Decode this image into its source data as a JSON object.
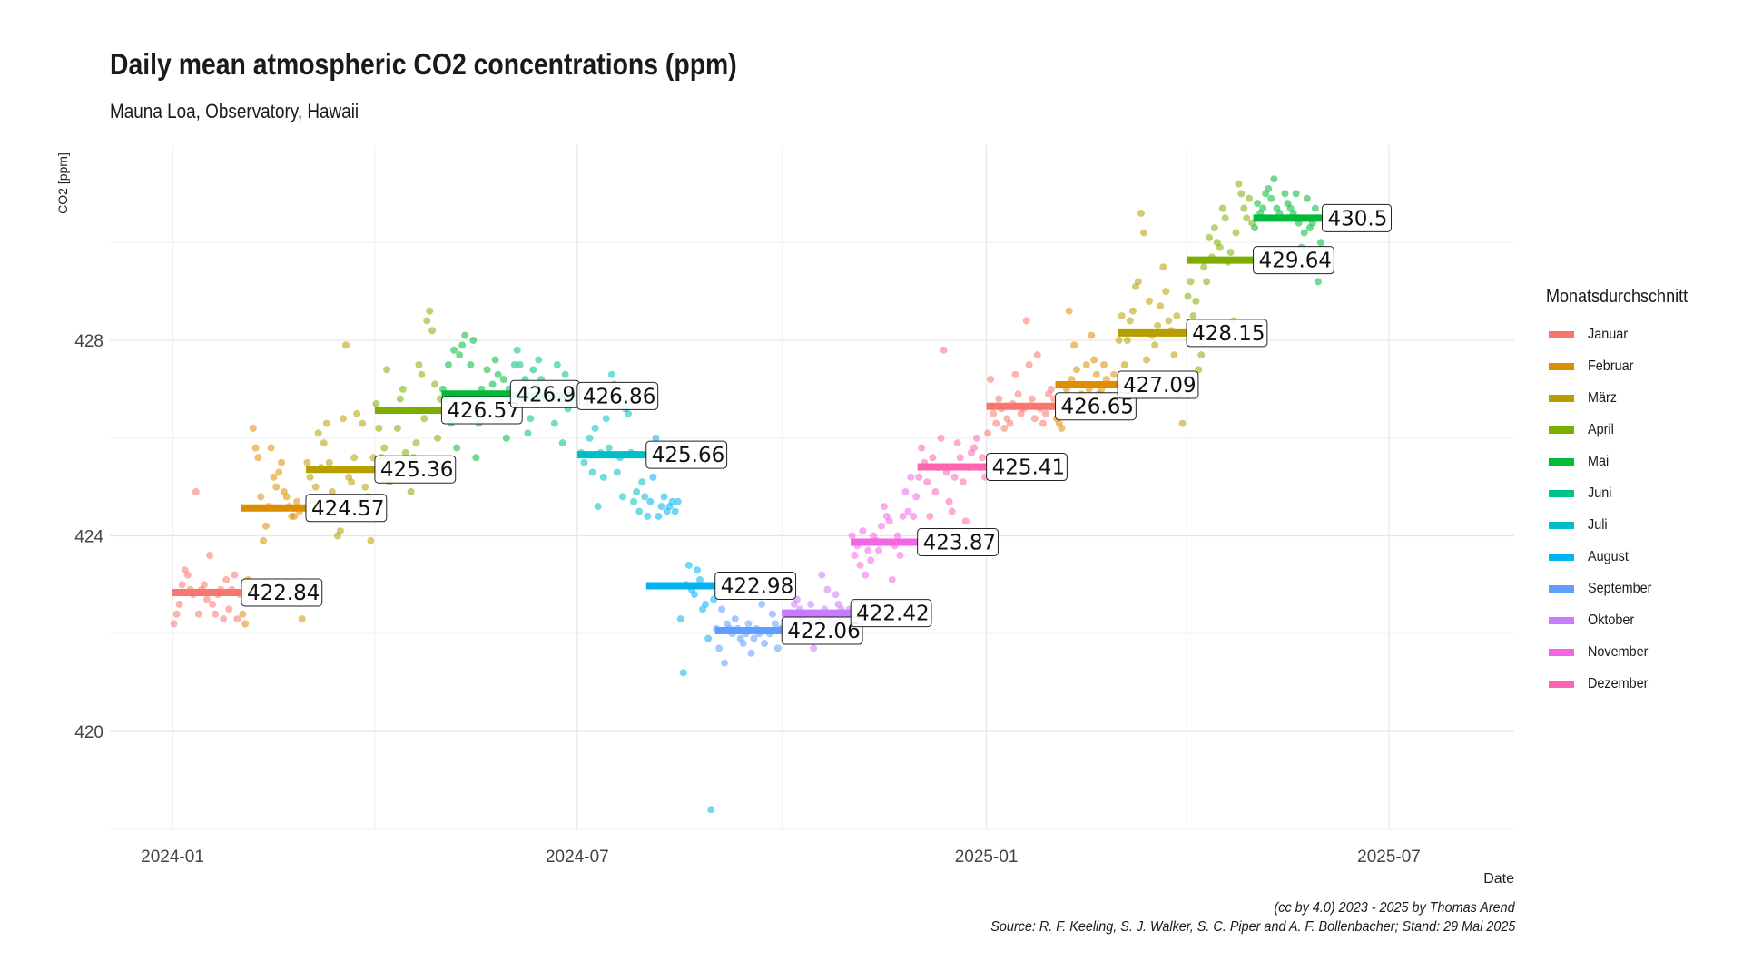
{
  "chart_data": {
    "type": "scatter",
    "title": "Daily mean atmospheric CO2 concentrations (ppm)",
    "subtitle": "Mauna Loa, Observatory, Hawaii",
    "xlabel": "Date",
    "ylabel": "CO2 [ppm]",
    "x_ticks": [
      "2024-01",
      "2024-07",
      "2025-01",
      "2025-07"
    ],
    "y_ticks": [
      420,
      424,
      428
    ],
    "xlim": [
      "2023-12-01",
      "2025-08-31"
    ],
    "ylim": [
      418.0,
      432.0
    ],
    "grid": true,
    "legend_title": "Monatsdurchschnitt",
    "legend_position": "right",
    "months": [
      "Januar",
      "Februar",
      "März",
      "April",
      "Mai",
      "Juni",
      "Juli",
      "August",
      "September",
      "Oktober",
      "November",
      "Dezember"
    ],
    "month_colors": [
      "#F8766D",
      "#DE8C00",
      "#B79F00",
      "#7CAE00",
      "#00BA38",
      "#00C08B",
      "#00BFC4",
      "#00B4F0",
      "#619CFF",
      "#C77CFF",
      "#F564E3",
      "#FF64B0"
    ],
    "monthly_means": [
      {
        "month": "2024-01",
        "value": 422.84
      },
      {
        "month": "2024-02",
        "value": 424.57
      },
      {
        "month": "2024-03",
        "value": 425.36
      },
      {
        "month": "2024-04",
        "value": 426.57
      },
      {
        "month": "2024-05",
        "value": 426.9
      },
      {
        "month": "2024-06",
        "value": 426.86
      },
      {
        "month": "2024-07",
        "value": 425.66
      },
      {
        "month": "2024-08",
        "value": 422.98
      },
      {
        "month": "2024-09",
        "value": 422.06
      },
      {
        "month": "2024-10",
        "value": 422.42
      },
      {
        "month": "2024-11",
        "value": 423.87
      },
      {
        "month": "2024-12",
        "value": 425.41
      },
      {
        "month": "2025-01",
        "value": 426.65
      },
      {
        "month": "2025-02",
        "value": 427.09
      },
      {
        "month": "2025-03",
        "value": 428.15
      },
      {
        "month": "2025-04",
        "value": 429.64
      },
      {
        "month": "2025-05",
        "value": 430.5
      }
    ],
    "daily_series": [
      {
        "month": "2024-01",
        "values": [
          422.2,
          422.4,
          422.6,
          423.0,
          423.3,
          423.2,
          422.9,
          422.8,
          424.9,
          422.4,
          422.9,
          423.0,
          422.7,
          423.6,
          422.6,
          422.4,
          422.8,
          422.9,
          422.3,
          423.1,
          422.5,
          422.9,
          423.2,
          422.3,
          422.8
        ]
      },
      {
        "month": "2024-02",
        "values": [
          422.4,
          422.2,
          423.1,
          422.9,
          426.2,
          425.8,
          425.6,
          424.8,
          423.9,
          424.2,
          424.6,
          425.8,
          425.2,
          425.0,
          425.3,
          425.5,
          424.9,
          424.8,
          424.6,
          424.4,
          424.4,
          424.7,
          424.5,
          422.3,
          422.9
        ]
      },
      {
        "month": "2024-03",
        "values": [
          425.5,
          425.2,
          424.7,
          425.0,
          426.1,
          425.4,
          425.9,
          426.3,
          425.5,
          424.9,
          424.4,
          424.0,
          424.1,
          426.4,
          427.9,
          425.2,
          425.1,
          425.6,
          426.5,
          424.7,
          426.3,
          425.0,
          424.8,
          423.9,
          425.6
        ]
      },
      {
        "month": "2024-04",
        "values": [
          426.7,
          426.2,
          425.6,
          425.8,
          427.4,
          425.1,
          425.5,
          425.3,
          426.2,
          426.8,
          427.0,
          425.7,
          425.4,
          424.9,
          425.6,
          425.9,
          427.5,
          427.3,
          426.4,
          428.4,
          428.6,
          428.2,
          427.1,
          426.0,
          426.8
        ]
      },
      {
        "month": "2024-05",
        "values": [
          427.0,
          426.8,
          427.5,
          426.3,
          427.8,
          425.8,
          427.7,
          427.9,
          428.1,
          426.5,
          427.5,
          428.0,
          425.6,
          426.3,
          427.0,
          426.8,
          427.4,
          426.9,
          427.1,
          427.6,
          427.3,
          426.4,
          427.2,
          426.0,
          427.0
        ]
      },
      {
        "month": "2024-06",
        "values": [
          426.6,
          427.5,
          427.8,
          427.5,
          427.0,
          427.2,
          426.1,
          426.4,
          427.4,
          427.1,
          427.6,
          427.2,
          426.8,
          426.9,
          427.1,
          426.9,
          426.3,
          427.5,
          426.8,
          425.9,
          427.3,
          426.6,
          426.9,
          426.7,
          427.0
        ]
      },
      {
        "month": "2024-07",
        "values": [
          426.9,
          425.7,
          425.5,
          426.7,
          426.0,
          425.3,
          426.2,
          424.6,
          425.7,
          425.2,
          426.4,
          425.8,
          427.3,
          427.1,
          425.3,
          425.6,
          424.8,
          426.6,
          426.5,
          425.7,
          424.7,
          424.9,
          424.5,
          425.1,
          424.8
        ]
      },
      {
        "month": "2024-08",
        "values": [
          424.4,
          424.7,
          425.2,
          426.0,
          424.4,
          424.6,
          424.8,
          424.5,
          424.6,
          424.7,
          424.5,
          424.7,
          422.3,
          421.2,
          423.0,
          423.4,
          422.9,
          422.8,
          423.3,
          423.1,
          422.5,
          422.6,
          421.9,
          418.4,
          422.7
        ]
      },
      {
        "month": "2024-09",
        "values": [
          422.1,
          421.7,
          422.5,
          421.4,
          422.2,
          422.1,
          422.0,
          422.3,
          422.1,
          421.9,
          421.8,
          422.0,
          422.2,
          421.6,
          421.9,
          422.1,
          422.0,
          422.6,
          421.8,
          422.9,
          422.0,
          422.4,
          422.2,
          421.7,
          422.1
        ]
      },
      {
        "month": "2024-10",
        "values": [
          422.1,
          422.4,
          422.2,
          421.9,
          422.6,
          422.7,
          422.5,
          422.3,
          422.4,
          422.2,
          422.6,
          421.7,
          421.9,
          422.0,
          423.2,
          422.5,
          422.9,
          422.3,
          422.2,
          422.8,
          422.6,
          422.5,
          422.4,
          422.3,
          422.5
        ]
      },
      {
        "month": "2024-11",
        "values": [
          424.0,
          423.6,
          423.8,
          423.4,
          424.1,
          423.2,
          423.7,
          423.5,
          424.0,
          423.9,
          423.7,
          424.2,
          424.6,
          424.4,
          424.3,
          423.1,
          423.8,
          424.0,
          423.6,
          424.4,
          424.9,
          424.5,
          425.2,
          424.4,
          424.8
        ]
      },
      {
        "month": "2024-12",
        "values": [
          425.2,
          425.8,
          425.5,
          425.1,
          424.4,
          425.6,
          424.9,
          425.4,
          426.0,
          427.8,
          425.3,
          424.7,
          424.5,
          425.2,
          425.9,
          425.6,
          425.1,
          424.3,
          425.4,
          425.7,
          425.8,
          426.0,
          425.4,
          425.6,
          425.2
        ]
      },
      {
        "month": "2025-01",
        "values": [
          426.1,
          427.2,
          426.5,
          426.3,
          426.8,
          426.6,
          426.2,
          426.4,
          426.3,
          426.7,
          427.3,
          426.9,
          426.5,
          426.6,
          428.4,
          427.5,
          426.8,
          426.4,
          427.7,
          426.6,
          426.3,
          426.5,
          426.9,
          427.0,
          426.8
        ]
      },
      {
        "month": "2025-02",
        "values": [
          426.4,
          426.3,
          426.2,
          426.6,
          427.0,
          428.6,
          427.2,
          427.9,
          427.4,
          426.6,
          426.9,
          426.7,
          427.5,
          427.0,
          428.1,
          427.6,
          427.3,
          426.9,
          427.0,
          427.5,
          427.2,
          427.1,
          426.8,
          427.3,
          427.1
        ]
      },
      {
        "month": "2025-03",
        "values": [
          428.0,
          428.5,
          427.5,
          428.0,
          428.4,
          428.6,
          429.1,
          429.2,
          430.6,
          430.2,
          427.6,
          428.8,
          428.1,
          427.9,
          428.3,
          428.7,
          429.5,
          429.0,
          428.4,
          428.2,
          427.7,
          428.5,
          426.9,
          426.3,
          427.0
        ]
      },
      {
        "month": "2025-04",
        "values": [
          428.9,
          429.2,
          428.5,
          428.8,
          427.4,
          427.7,
          429.5,
          429.2,
          430.1,
          429.7,
          430.3,
          430.0,
          429.9,
          430.7,
          430.5,
          429.6,
          429.8,
          428.4,
          430.2,
          431.2,
          431.0,
          430.7,
          430.5,
          430.9,
          430.4
        ]
      },
      {
        "month": "2025-05",
        "values": [
          430.3,
          430.8,
          430.6,
          430.7,
          431.0,
          431.1,
          430.9,
          431.3,
          430.7,
          430.6,
          430.5,
          431.0,
          430.8,
          430.7,
          430.6,
          431.0,
          430.4,
          429.9,
          430.2,
          430.9,
          430.3,
          430.4,
          430.7,
          429.2,
          430.0
        ]
      }
    ]
  },
  "caption": {
    "line1": "(cc by 4.0) 2023 - 2025 by Thomas Arend",
    "line2": "Source: R. F. Keeling, S. J. Walker, S. C. Piper and A. F. Bollenbacher; Stand: 29 Mai 2025"
  }
}
